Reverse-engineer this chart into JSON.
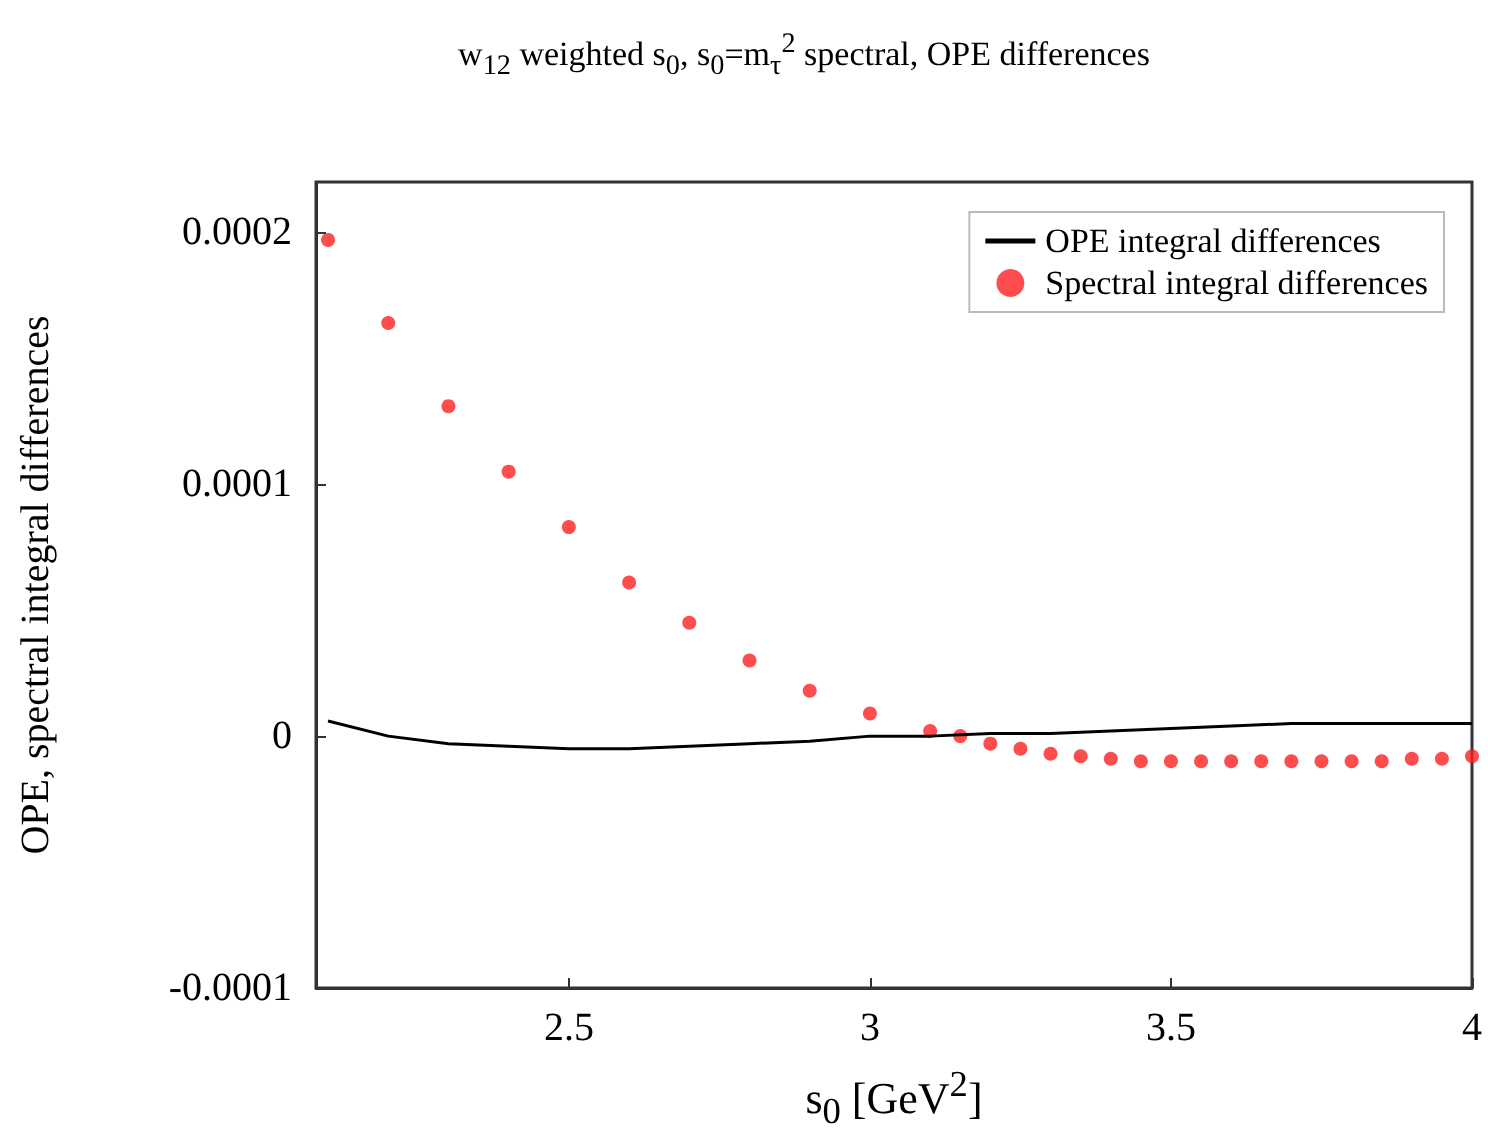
{
  "chart_data": {
    "type": "line",
    "title": "w$_{12}$ weighted s$_{0}$, s$_{0}$=m$_{τ}$$^{2}$ spectral, OPE differences",
    "xlabel": "s$_{0}$ [GeV$^{2}$]",
    "ylabel": "OPE, spectral integral differences",
    "xlim": [
      2.08,
      4
    ],
    "xticks": [
      2.5,
      3,
      3.5,
      4
    ],
    "ylim": [
      -0.0001,
      0.00022
    ],
    "yticks": [
      -0.0001,
      0,
      0.0001,
      0.0002
    ],
    "legend": "top right",
    "series": [
      {
        "name": "OPE integral differences",
        "color": "#000000",
        "marker": "none",
        "line_style": "solid",
        "x": [
          2.1,
          2.2,
          2.3,
          2.4,
          2.5,
          2.6,
          2.7,
          2.8,
          2.9,
          3.0,
          3.1,
          3.2,
          3.3,
          3.4,
          3.5,
          3.6,
          3.7,
          3.8,
          3.9,
          4.0
        ],
        "values": [
          6e-06,
          0,
          -3e-06,
          -4e-06,
          -5e-06,
          -5e-06,
          -4e-06,
          -3e-06,
          -2e-06,
          0,
          0,
          1e-06,
          1e-06,
          2e-06,
          3e-06,
          4e-06,
          5e-06,
          5e-06,
          5e-06,
          5e-06
        ]
      },
      {
        "name": "Spectral integral differences",
        "type": "scatter",
        "color": "#ff2020",
        "marker": "circle",
        "x": [
          2.1,
          2.2,
          2.3,
          2.4,
          2.5,
          2.6,
          2.7,
          2.8,
          2.9,
          3.0,
          3.1,
          3.15,
          3.2,
          3.25,
          3.3,
          3.35,
          3.4,
          3.45,
          3.5,
          3.55,
          3.6,
          3.65,
          3.7,
          3.75,
          3.8,
          3.85,
          3.9,
          3.95,
          4.0
        ],
        "values": [
          0.000197,
          0.000164,
          0.000131,
          0.000105,
          8.3e-05,
          6.1e-05,
          4.5e-05,
          3e-05,
          1.8e-05,
          9e-06,
          2e-06,
          0,
          -3e-06,
          -5e-06,
          -7e-06,
          -8e-06,
          -9e-06,
          -1e-05,
          -1e-05,
          -1e-05,
          -1e-05,
          -1e-05,
          -1e-05,
          -1e-05,
          -1e-05,
          -1e-05,
          -9e-06,
          -9e-06,
          -8e-06
        ]
      }
    ]
  }
}
